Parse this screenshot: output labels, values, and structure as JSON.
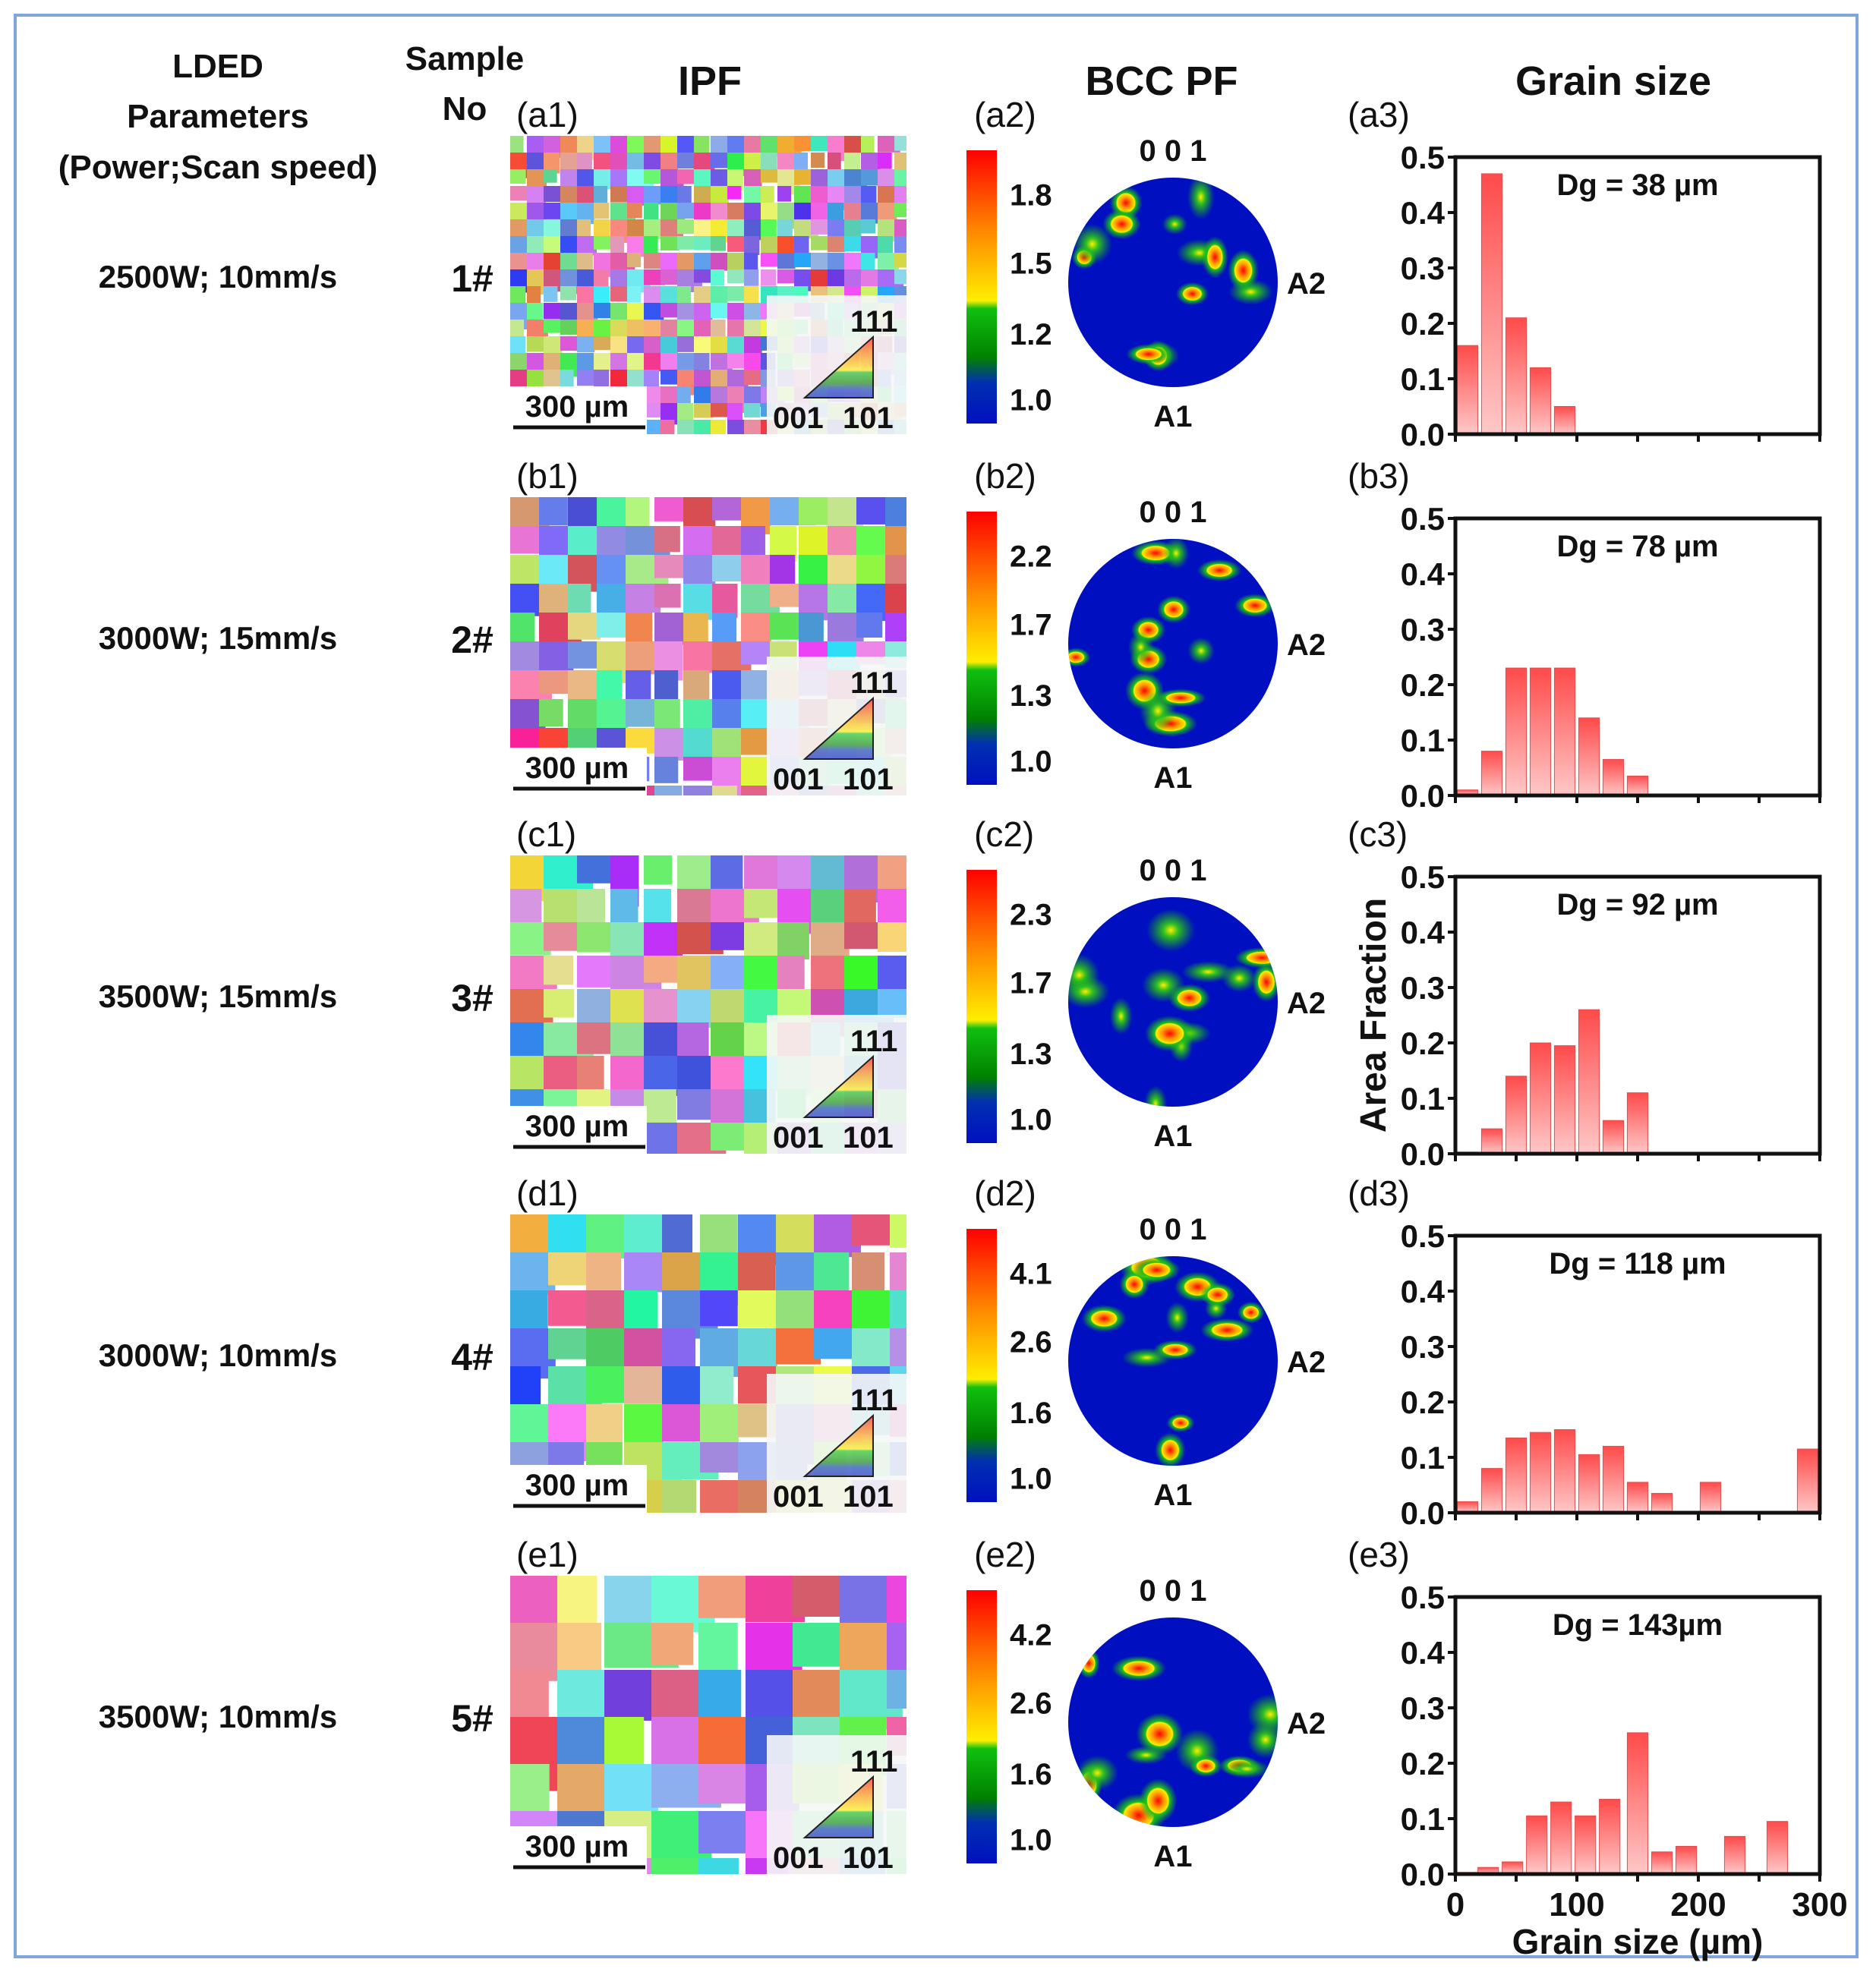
{
  "headers": {
    "params_line1": "LDED",
    "params_line2": "Parameters",
    "params_line3": "(Power;Scan speed)",
    "sample_line1": "Sample",
    "sample_line2": "No",
    "ipf": "IPF",
    "pf": "BCC PF",
    "grain": "Grain size"
  },
  "common": {
    "scale_bar": "300 µm",
    "tri_111": "111",
    "tri_001": "001",
    "tri_101": "101",
    "pf_top": "0 0 1",
    "pf_right": "A2",
    "pf_bottom": "A1",
    "ylabel": "Area Fraction",
    "xlabel": "Grain size (µm)",
    "yticks": [
      "0.0",
      "0.1",
      "0.2",
      "0.3",
      "0.4",
      "0.5"
    ],
    "xticks": [
      "0",
      "100",
      "200",
      "300"
    ]
  },
  "colors": {
    "bar_top": "#ff4a4a",
    "bar_bottom": "#ffc8c8",
    "pf_blue": "#0010c0",
    "frame": "#7ea6dc"
  },
  "rows": [
    {
      "params": "2500W; 10mm/s",
      "sample": "1#",
      "lab1": "(a1)",
      "lab2": "(a2)",
      "lab3": "(a3)",
      "cbar": [
        "1.8",
        "1.5",
        "1.2",
        "1.0"
      ],
      "dg": "Dg = 38 µm"
    },
    {
      "params": "3000W; 15mm/s",
      "sample": "2#",
      "lab1": "(b1)",
      "lab2": "(b2)",
      "lab3": "(b3)",
      "cbar": [
        "2.2",
        "1.7",
        "1.3",
        "1.0"
      ],
      "dg": "Dg = 78 µm"
    },
    {
      "params": "3500W; 15mm/s",
      "sample": "3#",
      "lab1": "(c1)",
      "lab2": "(c2)",
      "lab3": "(c3)",
      "cbar": [
        "2.3",
        "1.7",
        "1.3",
        "1.0"
      ],
      "dg": "Dg = 92 µm"
    },
    {
      "params": "3000W; 10mm/s",
      "sample": "4#",
      "lab1": "(d1)",
      "lab2": "(d2)",
      "lab3": "(d3)",
      "cbar": [
        "4.1",
        "2.6",
        "1.6",
        "1.0"
      ],
      "dg": "Dg = 118 µm"
    },
    {
      "params": "3500W; 10mm/s",
      "sample": "5#",
      "lab1": "(e1)",
      "lab2": "(e2)",
      "lab3": "(e3)",
      "cbar": [
        "4.2",
        "2.6",
        "1.6",
        "1.0"
      ],
      "dg": "Dg = 143µm"
    }
  ],
  "chart_data": [
    {
      "type": "bar",
      "title": "Dg = 38 µm",
      "xlabel": "Grain size (µm)",
      "ylabel": "Area Fraction",
      "xlim": [
        0,
        300
      ],
      "ylim": [
        0,
        0.5
      ],
      "x": [
        10,
        30,
        50,
        70,
        90
      ],
      "values": [
        0.16,
        0.47,
        0.21,
        0.12,
        0.05
      ]
    },
    {
      "type": "bar",
      "title": "Dg = 78 µm",
      "xlabel": "Grain size (µm)",
      "ylabel": "Area Fraction",
      "xlim": [
        0,
        300
      ],
      "ylim": [
        0,
        0.5
      ],
      "x": [
        10,
        30,
        50,
        70,
        90,
        110,
        130,
        150
      ],
      "values": [
        0.01,
        0.08,
        0.23,
        0.23,
        0.23,
        0.14,
        0.065,
        0.035
      ]
    },
    {
      "type": "bar",
      "title": "Dg = 92 µm",
      "xlabel": "Grain size (µm)",
      "ylabel": "Area Fraction",
      "xlim": [
        0,
        300
      ],
      "ylim": [
        0,
        0.5
      ],
      "x": [
        10,
        30,
        50,
        70,
        90,
        110,
        130,
        150
      ],
      "values": [
        0.003,
        0.045,
        0.14,
        0.2,
        0.195,
        0.26,
        0.06,
        0.11
      ]
    },
    {
      "type": "bar",
      "title": "Dg = 118 µm",
      "xlabel": "Grain size (µm)",
      "ylabel": "Area Fraction",
      "xlim": [
        0,
        300
      ],
      "ylim": [
        0,
        0.5
      ],
      "x": [
        10,
        30,
        50,
        70,
        90,
        110,
        130,
        150,
        170,
        210,
        290
      ],
      "values": [
        0.02,
        0.08,
        0.135,
        0.145,
        0.15,
        0.105,
        0.12,
        0.055,
        0.035,
        0.055,
        0.115
      ]
    },
    {
      "type": "bar",
      "title": "Dg = 143µm",
      "xlabel": "Grain size (µm)",
      "ylabel": "Area Fraction",
      "xlim": [
        0,
        300
      ],
      "ylim": [
        0,
        0.5
      ],
      "x": [
        10,
        27,
        47,
        67,
        87,
        107,
        127,
        150,
        170,
        190,
        230,
        265
      ],
      "values": [
        0.003,
        0.012,
        0.022,
        0.105,
        0.13,
        0.105,
        0.135,
        0.255,
        0.04,
        0.05,
        0.068,
        0.095
      ]
    }
  ]
}
